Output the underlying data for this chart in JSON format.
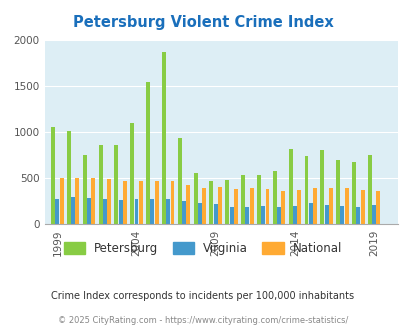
{
  "title": "Petersburg Violent Crime Index",
  "title_color": "#1a6fbb",
  "years": [
    1999,
    2000,
    2001,
    2002,
    2003,
    2004,
    2005,
    2006,
    2007,
    2008,
    2009,
    2010,
    2011,
    2012,
    2013,
    2014,
    2015,
    2016,
    2017,
    2018,
    2019,
    2020
  ],
  "petersburg": [
    1050,
    1010,
    750,
    860,
    860,
    1095,
    1540,
    1870,
    940,
    560,
    470,
    480,
    530,
    530,
    580,
    820,
    740,
    810,
    700,
    670,
    750,
    null
  ],
  "virginia": [
    280,
    295,
    285,
    275,
    265,
    280,
    280,
    280,
    255,
    235,
    220,
    185,
    190,
    195,
    185,
    195,
    230,
    205,
    195,
    185,
    210,
    null
  ],
  "national": [
    505,
    505,
    500,
    490,
    475,
    465,
    475,
    465,
    430,
    395,
    405,
    380,
    390,
    385,
    365,
    370,
    390,
    395,
    390,
    375,
    365,
    null
  ],
  "bar_colors": [
    "#88cc44",
    "#4499cc",
    "#ffaa33"
  ],
  "bg_color": "#ddeef5",
  "ylim": [
    0,
    2000
  ],
  "yticks": [
    0,
    500,
    1000,
    1500,
    2000
  ],
  "xticks": [
    1999,
    2004,
    2009,
    2014,
    2019
  ],
  "legend_labels": [
    "Petersburg",
    "Virginia",
    "National"
  ],
  "footnote1": "Crime Index corresponds to incidents per 100,000 inhabitants",
  "footnote2": "© 2025 CityRating.com - https://www.cityrating.com/crime-statistics/",
  "footnote1_color": "#333333",
  "footnote2_color": "#888888"
}
